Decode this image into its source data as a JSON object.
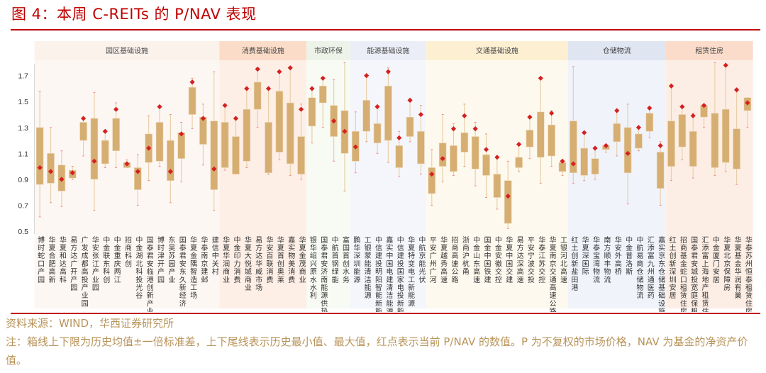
{
  "title": "图 4：本周 C-REITs 的 P/NAV 表现",
  "footer": {
    "source": "资料来源：WIND，华西证券研究所",
    "note": "注：箱线上下限为历史均值±一倍标准差，上下尾线表示历史最小值、最大值，红点表示当前 P/NAV 的数值。P 为不复权的市场价格，NAV 为基金的净资产价值。"
  },
  "colors": {
    "title": "#c00000",
    "box": "#d6ae72",
    "dot": "#d42020",
    "whisker": "#e8cfa8"
  },
  "chart_data": {
    "type": "boxplot",
    "title": "本周 C-REITs 的 P/NAV 表现",
    "ylim": [
      0.5,
      1.8
    ],
    "yticks": [
      "0.5",
      "0.7",
      "0.9",
      "1.1",
      "1.3",
      "1.5",
      "1.7"
    ],
    "groups": [
      {
        "name": "园区基础设施",
        "count": 17,
        "bg": "#fdf7f3",
        "head": "#fcf2ec"
      },
      {
        "name": "消费基础设施",
        "count": 8,
        "bg": "#fdeee6",
        "head": "#fbdcc8"
      },
      {
        "name": "市政环保",
        "count": 4,
        "bg": "#f8faf4",
        "head": "#eef3ea"
      },
      {
        "name": "能源基础设施",
        "count": 7,
        "bg": "#f5f6fb",
        "head": "#eceef7"
      },
      {
        "name": "交通基础设施",
        "count": 13,
        "bg": "#fef9ee",
        "head": "#fdf0d2"
      },
      {
        "name": "仓储物流",
        "count": 9,
        "bg": "#f0f3fa",
        "head": "#dfe5f1"
      },
      {
        "name": "租赁住房",
        "count": 8,
        "bg": "#fdeee5",
        "head": "#fbdccb"
      }
    ],
    "items": [
      {
        "name": "博时蛇口产园",
        "min": 0.61,
        "q1": 0.86,
        "q3": 1.3,
        "max": 1.58,
        "current": 0.99
      },
      {
        "name": "华夏合肥高新",
        "min": 0.72,
        "q1": 0.87,
        "q3": 1.1,
        "max": 1.3,
        "current": 0.96
      },
      {
        "name": "华夏和达高科",
        "min": 0.69,
        "q1": 0.81,
        "q3": 1.01,
        "max": 1.12,
        "current": 0.9
      },
      {
        "name": "易方达广开产园",
        "min": 0.9,
        "q1": 0.91,
        "q3": 0.97,
        "max": 1.0,
        "current": 0.95
      },
      {
        "name": "广发成都高投产业园",
        "min": 1.08,
        "q1": 1.2,
        "q3": 1.34,
        "max": 1.37,
        "current": 1.37
      },
      {
        "name": "华安张江产业园",
        "min": 0.66,
        "q1": 0.9,
        "q3": 1.37,
        "max": 1.57,
        "current": 1.04
      },
      {
        "name": "中金联东科创",
        "min": 0.99,
        "q1": 1.02,
        "q3": 1.2,
        "max": 1.27,
        "current": 1.27
      },
      {
        "name": "中金重庆两江",
        "min": 0.99,
        "q1": 1.12,
        "q3": 1.37,
        "max": 1.49,
        "current": 1.44
      },
      {
        "name": "招商科创",
        "min": 0.99,
        "q1": 0.99,
        "q3": 1.03,
        "max": 1.05,
        "current": 1.02
      },
      {
        "name": "中金湖北科投光谷",
        "min": 0.7,
        "q1": 0.82,
        "q3": 0.99,
        "max": 1.09,
        "current": 0.96
      },
      {
        "name": "国泰君安临港创新产业园",
        "min": 0.89,
        "q1": 1.03,
        "q3": 1.25,
        "max": 1.39,
        "current": 1.14
      },
      {
        "name": "博时津开产园",
        "min": 1.0,
        "q1": 1.04,
        "q3": 1.34,
        "max": 1.46,
        "current": 1.46
      },
      {
        "name": "东吴苏园产业",
        "min": 0.72,
        "q1": 0.89,
        "q3": 1.2,
        "max": 1.4,
        "current": 0.96
      },
      {
        "name": "国泰君安东久新经济",
        "min": 0.88,
        "q1": 1.06,
        "q3": 1.26,
        "max": 1.34,
        "current": 1.25
      },
      {
        "name": "华夏金隅智造工场",
        "min": 1.29,
        "q1": 1.4,
        "q3": 1.61,
        "max": 1.68,
        "current": 1.65
      },
      {
        "name": "华泰南京建邺",
        "min": 1.01,
        "q1": 1.17,
        "q3": 1.38,
        "max": 1.48,
        "current": 1.37
      },
      {
        "name": "建信中关村",
        "min": 0.66,
        "q1": 0.82,
        "q3": 1.35,
        "max": 1.73,
        "current": 0.98
      },
      {
        "name": "华夏华润商业",
        "min": 0.97,
        "q1": 0.99,
        "q3": 1.34,
        "max": 1.47,
        "current": 1.47
      },
      {
        "name": "中金印力消费",
        "min": 0.94,
        "q1": 0.94,
        "q3": 1.23,
        "max": 1.37,
        "current": 1.37
      },
      {
        "name": "华夏大悦城商业",
        "min": 0.99,
        "q1": 1.04,
        "q3": 1.44,
        "max": 1.6,
        "current": 1.6
      },
      {
        "name": "易方达华威市场",
        "min": 1.3,
        "q1": 1.44,
        "q3": 1.65,
        "max": 1.75,
        "current": 1.75
      },
      {
        "name": "华安百联消费",
        "min": 0.94,
        "q1": 0.95,
        "q3": 1.34,
        "max": 1.6,
        "current": 1.6
      },
      {
        "name": "华夏首创奥莱",
        "min": 1.05,
        "q1": 1.11,
        "q3": 1.58,
        "max": 1.73,
        "current": 1.73
      },
      {
        "name": "嘉实物美消费",
        "min": 0.93,
        "q1": 1.02,
        "q3": 1.49,
        "max": 1.76,
        "current": 1.76
      },
      {
        "name": "华夏金茂商业",
        "min": 0.9,
        "q1": 0.94,
        "q3": 1.23,
        "max": 1.48,
        "current": 1.44
      },
      {
        "name": "银华绍兴原水水利",
        "min": 1.18,
        "q1": 1.31,
        "q3": 1.53,
        "max": 1.6,
        "current": 1.6
      },
      {
        "name": "国泰君安济南能源供热",
        "min": 1.3,
        "q1": 1.49,
        "q3": 1.62,
        "max": 1.68,
        "current": 1.68
      },
      {
        "name": "中航首钢绿能",
        "min": 1.04,
        "q1": 1.23,
        "q3": 1.47,
        "max": 1.67,
        "current": 1.35
      },
      {
        "name": "富国首创水务",
        "min": 0.81,
        "q1": 1.1,
        "q3": 1.43,
        "max": 1.8,
        "current": 1.27
      },
      {
        "name": "鹏华深圳能源",
        "min": 0.95,
        "q1": 1.04,
        "q3": 1.27,
        "max": 1.42,
        "current": 1.15
      },
      {
        "name": "工银蒙能清洁能源",
        "min": 1.19,
        "q1": 1.27,
        "q3": 1.51,
        "max": 1.7,
        "current": 1.7
      },
      {
        "name": "中信建投明阳智能新能源",
        "min": 1.1,
        "q1": 1.18,
        "q3": 1.33,
        "max": 1.46,
        "current": 1.46
      },
      {
        "name": "嘉实中国电建清洁能源",
        "min": 1.03,
        "q1": 1.2,
        "q3": 1.62,
        "max": 1.76,
        "current": 1.73
      },
      {
        "name": "中信建投国家电投新能源",
        "min": 0.92,
        "q1": 0.99,
        "q3": 1.16,
        "max": 1.27,
        "current": 1.22
      },
      {
        "name": "华夏特变电工新能源",
        "min": 1.19,
        "q1": 1.23,
        "q3": 1.38,
        "max": 1.51,
        "current": 1.51
      },
      {
        "name": "中航京能光伏",
        "min": 0.94,
        "q1": 1.02,
        "q3": 1.27,
        "max": 1.47,
        "current": 1.4
      },
      {
        "name": "平安广州广河",
        "min": 0.7,
        "q1": 0.79,
        "q3": 0.99,
        "max": 1.13,
        "current": 0.94
      },
      {
        "name": "华夏越秀高速",
        "min": 0.88,
        "q1": 1.0,
        "q3": 1.18,
        "max": 1.4,
        "current": 1.06
      },
      {
        "name": "招商高速公路",
        "min": 0.93,
        "q1": 0.96,
        "q3": 1.16,
        "max": 1.33,
        "current": 1.29
      },
      {
        "name": "浙商沪杭甬",
        "min": 1.0,
        "q1": 1.11,
        "q3": 1.26,
        "max": 1.48,
        "current": 1.39
      },
      {
        "name": "中金山东高速",
        "min": 0.85,
        "q1": 0.98,
        "q3": 1.23,
        "max": 1.34,
        "current": 1.29
      },
      {
        "name": "国金中国铁建",
        "min": 0.76,
        "q1": 0.93,
        "q3": 1.09,
        "max": 1.25,
        "current": 1.13
      },
      {
        "name": "中金安徽交控",
        "min": 0.67,
        "q1": 0.76,
        "q3": 0.94,
        "max": 1.07,
        "current": 1.07
      },
      {
        "name": "华夏中国交建",
        "min": 0.52,
        "q1": 0.56,
        "q3": 0.89,
        "max": 1.04,
        "current": 0.77
      },
      {
        "name": "易方达深高速",
        "min": 0.96,
        "q1": 0.99,
        "q3": 1.07,
        "max": 1.17,
        "current": 1.17
      },
      {
        "name": "平安宁波交投",
        "min": 1.06,
        "q1": 1.15,
        "q3": 1.28,
        "max": 1.38,
        "current": 1.38
      },
      {
        "name": "华泰江苏交控",
        "min": 0.87,
        "q1": 1.07,
        "q3": 1.42,
        "max": 1.68,
        "current": 1.68
      },
      {
        "name": "华夏南京交通高速公路",
        "min": 1.0,
        "q1": 1.08,
        "q3": 1.32,
        "max": 1.43,
        "current": 1.41
      },
      {
        "name": "工银河北高速",
        "min": 0.93,
        "q1": 0.96,
        "q3": 1.03,
        "max": 1.05,
        "current": 1.04
      },
      {
        "name": "红土创新盐田港",
        "min": 0.87,
        "q1": 0.95,
        "q3": 1.35,
        "max": 1.77,
        "current": 1.02
      },
      {
        "name": "华夏深国际",
        "min": 0.89,
        "q1": 0.93,
        "q3": 1.14,
        "max": 1.26,
        "current": 1.26
      },
      {
        "name": "华泰宝湾物流",
        "min": 0.9,
        "q1": 0.94,
        "q3": 1.06,
        "max": 1.14,
        "current": 1.14
      },
      {
        "name": "南方顺丰物流",
        "min": 1.11,
        "q1": 1.13,
        "q3": 1.16,
        "max": 1.16,
        "current": 1.16
      },
      {
        "name": "华安外高桥",
        "min": 1.08,
        "q1": 1.19,
        "q3": 1.33,
        "max": 1.43,
        "current": 1.43
      },
      {
        "name": "中金普洛斯",
        "min": 0.71,
        "q1": 0.95,
        "q3": 1.3,
        "max": 1.48,
        "current": 1.1
      },
      {
        "name": "中航易商仓储物流",
        "min": 1.12,
        "q1": 1.14,
        "q3": 1.25,
        "max": 1.3,
        "current": 1.3
      },
      {
        "name": "汇添富九州通医药",
        "min": 1.22,
        "q1": 1.27,
        "q3": 1.41,
        "max": 1.45,
        "current": 1.45
      },
      {
        "name": "嘉实京东仓储基础设施",
        "min": 0.7,
        "q1": 0.83,
        "q3": 1.11,
        "max": 1.19,
        "current": 1.16
      },
      {
        "name": "红土创新深圳安居",
        "min": 0.89,
        "q1": 1.0,
        "q3": 1.35,
        "max": 1.62,
        "current": 1.62
      },
      {
        "name": "招商基金蛇口租赁住房",
        "min": 1.05,
        "q1": 1.15,
        "q3": 1.4,
        "max": 1.46,
        "current": 1.46
      },
      {
        "name": "国泰君安城投宽庭保租房",
        "min": 0.91,
        "q1": 1.0,
        "q3": 1.27,
        "max": 1.41,
        "current": 1.39
      },
      {
        "name": "汇添富上海地产租赁住房",
        "min": 1.3,
        "q1": 1.38,
        "q3": 1.47,
        "max": 1.47,
        "current": 1.47
      },
      {
        "name": "中金厦门安居",
        "min": 0.93,
        "q1": 0.99,
        "q3": 1.41,
        "max": 1.8,
        "current": null
      },
      {
        "name": "华夏北京保障房",
        "min": 0.96,
        "q1": 1.03,
        "q3": 1.44,
        "max": 1.78,
        "current": 1.78
      },
      {
        "name": "华夏基金华润有巢",
        "min": 0.86,
        "q1": 0.98,
        "q3": 1.29,
        "max": 1.59,
        "current": 1.59
      },
      {
        "name": "华泰苏州恒泰租赁住房",
        "min": 1.3,
        "q1": 1.43,
        "q3": 1.53,
        "max": 1.53,
        "current": 1.49
      }
    ]
  }
}
